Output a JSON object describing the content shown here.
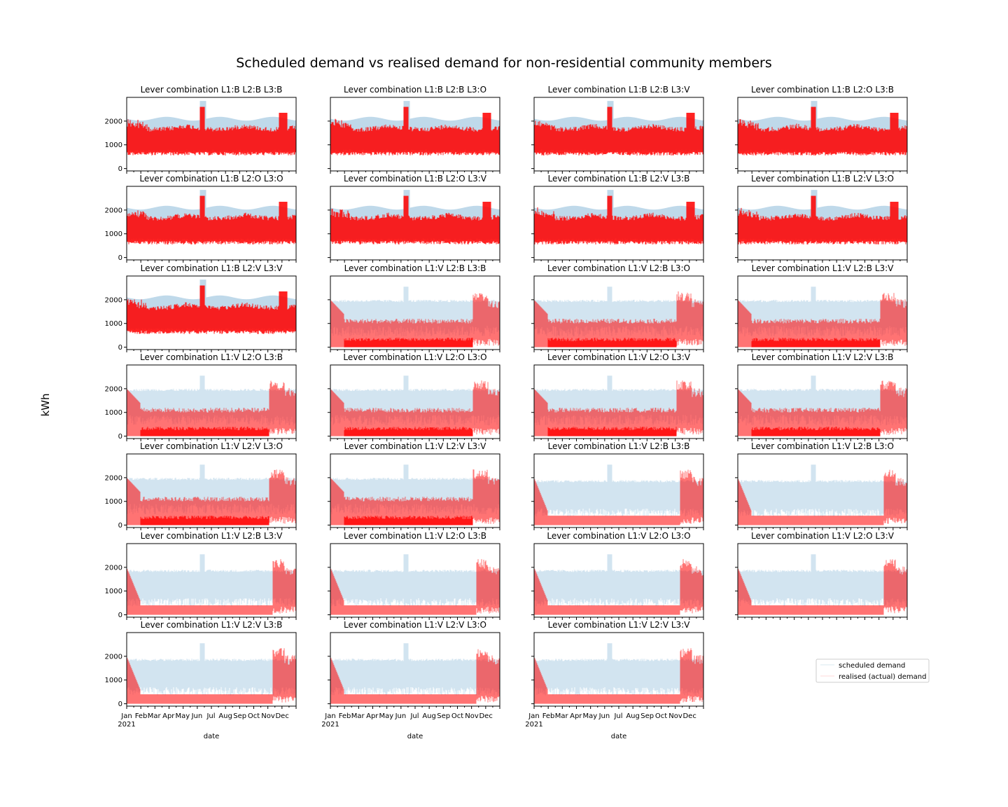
{
  "figure": {
    "title": "Scheduled demand vs realised demand for non-residential community members",
    "ylabel": "kWh",
    "xlabel": "date",
    "legend": [
      "scheduled demand",
      "realised (actual) demand"
    ]
  },
  "colors": {
    "scheduled": "#7fb3d5",
    "realised": "#ff0000",
    "frame": "#000000"
  },
  "chart_data": [
    {
      "type": "line",
      "title": "Lever combination L1:B L2:B L3:B",
      "pattern": "baseline",
      "ylim": [
        -100,
        3000
      ]
    },
    {
      "type": "line",
      "title": "Lever combination L1:B L2:B L3:O",
      "pattern": "baseline",
      "ylim": [
        -100,
        3000
      ]
    },
    {
      "type": "line",
      "title": "Lever combination L1:B L2:B L3:V",
      "pattern": "baseline",
      "ylim": [
        -100,
        3000
      ]
    },
    {
      "type": "line",
      "title": "Lever combination L1:B L2:O L3:B",
      "pattern": "baseline",
      "ylim": [
        -100,
        3000
      ]
    },
    {
      "type": "line",
      "title": "Lever combination L1:B L2:O L3:O",
      "pattern": "baseline",
      "ylim": [
        -100,
        3000
      ]
    },
    {
      "type": "line",
      "title": "Lever combination L1:B L2:O L3:V",
      "pattern": "baseline",
      "ylim": [
        -100,
        3000
      ]
    },
    {
      "type": "line",
      "title": "Lever combination L1:B L2:V L3:B",
      "pattern": "baseline",
      "ylim": [
        -100,
        3000
      ]
    },
    {
      "type": "line",
      "title": "Lever combination L1:B L2:V L3:O",
      "pattern": "baseline",
      "ylim": [
        -100,
        3000
      ]
    },
    {
      "type": "line",
      "title": "Lever combination L1:B L2:V L3:V",
      "pattern": "baseline",
      "ylim": [
        -100,
        3000
      ]
    },
    {
      "type": "line",
      "title": "Lever combination L1:V L2:B L3:B",
      "pattern": "reduced",
      "ylim": [
        -100,
        3000
      ]
    },
    {
      "type": "line",
      "title": "Lever combination L1:V L2:B L3:O",
      "pattern": "reduced",
      "ylim": [
        -100,
        3000
      ]
    },
    {
      "type": "line",
      "title": "Lever combination L1:V L2:B L3:V",
      "pattern": "reduced",
      "ylim": [
        -100,
        3000
      ]
    },
    {
      "type": "line",
      "title": "Lever combination L1:V L2:O L3:B",
      "pattern": "reduced",
      "ylim": [
        -100,
        3000
      ]
    },
    {
      "type": "line",
      "title": "Lever combination L1:V L2:O L3:O",
      "pattern": "reduced",
      "ylim": [
        -100,
        3000
      ]
    },
    {
      "type": "line",
      "title": "Lever combination L1:V L2:O L3:V",
      "pattern": "reduced",
      "ylim": [
        -100,
        3000
      ]
    },
    {
      "type": "line",
      "title": "Lever combination L1:V L2:V L3:B",
      "pattern": "reduced",
      "ylim": [
        -100,
        3000
      ]
    },
    {
      "type": "line",
      "title": "Lever combination L1:V L2:V L3:O",
      "pattern": "reduced",
      "ylim": [
        -100,
        3000
      ]
    },
    {
      "type": "line",
      "title": "Lever combination L1:V L2:V L3:V",
      "pattern": "reduced",
      "ylim": [
        -100,
        3000
      ]
    },
    {
      "type": "line",
      "title": "Lever combination L1:V L2:B L3:B",
      "pattern": "low",
      "ylim": [
        -100,
        3000
      ]
    },
    {
      "type": "line",
      "title": "Lever combination L1:V L2:B L3:O",
      "pattern": "low",
      "ylim": [
        -100,
        3000
      ]
    },
    {
      "type": "line",
      "title": "Lever combination L1:V L2:B L3:V",
      "pattern": "low",
      "ylim": [
        -100,
        3000
      ]
    },
    {
      "type": "line",
      "title": "Lever combination L1:V L2:O L3:B",
      "pattern": "low",
      "ylim": [
        -100,
        3000
      ]
    },
    {
      "type": "line",
      "title": "Lever combination L1:V L2:O L3:O",
      "pattern": "low",
      "ylim": [
        -100,
        3000
      ]
    },
    {
      "type": "line",
      "title": "Lever combination L1:V L2:O L3:V",
      "pattern": "low",
      "ylim": [
        -100,
        3000
      ]
    },
    {
      "type": "line",
      "title": "Lever combination L1:V L2:V L3:B",
      "pattern": "low",
      "ylim": [
        -100,
        3000
      ]
    },
    {
      "type": "line",
      "title": "Lever combination L1:V L2:V L3:O",
      "pattern": "low",
      "ylim": [
        -100,
        3000
      ]
    },
    {
      "type": "line",
      "title": "Lever combination L1:V L2:V L3:V",
      "pattern": "low",
      "ylim": [
        -100,
        3000
      ]
    }
  ],
  "axes": {
    "yticks": [
      "0",
      "1000",
      "2000"
    ],
    "ytick_values": [
      0,
      1000,
      2000
    ],
    "xticks": [
      "Jan\n2021",
      "Feb",
      "Mar",
      "Apr",
      "May",
      "Jun",
      "Jul",
      "Aug",
      "Sep",
      "Oct",
      "Nov",
      "Dec"
    ]
  },
  "series_levels": {
    "baseline": {
      "scheduled_high": 2000,
      "scheduled_low": 800,
      "realised_high": 1900,
      "realised_low": 700,
      "peak_june": 2600,
      "peak_dec": 2350
    },
    "reduced": {
      "scheduled_high": 1900,
      "scheduled_low": 900,
      "realised_mid": 1000,
      "realised_low": 250,
      "dec_high": 2350
    },
    "low": {
      "scheduled_high": 1800,
      "scheduled_low": 700,
      "realised_mid": 400,
      "realised_low": 100,
      "dec_high": 2350
    }
  }
}
